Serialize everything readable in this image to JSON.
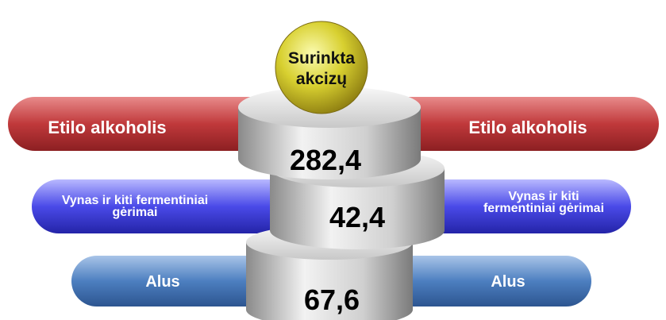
{
  "center_label": [
    "Surinkta",
    "akcizų"
  ],
  "rows": [
    {
      "left_label": [
        "Etilo alkoholis"
      ],
      "right_label": [
        "Etilo alkoholis"
      ],
      "value": "282,4"
    },
    {
      "left_label": [
        "Vynas ir kiti fermentiniai",
        "gėrimai"
      ],
      "right_label": [
        "Vynas ir kiti",
        "fermentiniai gėrimai"
      ],
      "value": "42,4"
    },
    {
      "left_label": [
        "Alus"
      ],
      "right_label": [
        "Alus"
      ],
      "value": "67,6"
    }
  ]
}
